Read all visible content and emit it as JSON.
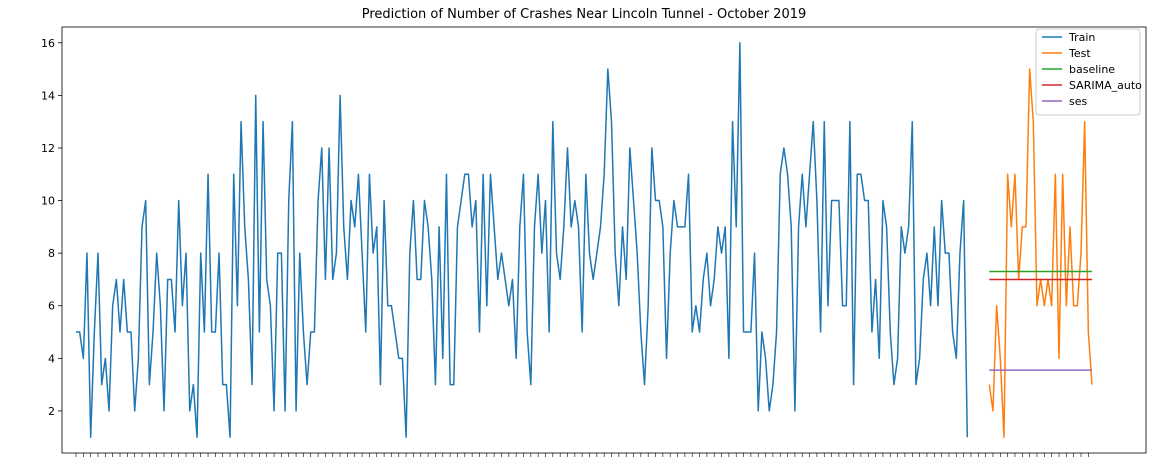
{
  "chart_data": {
    "type": "line",
    "title": "Prediction of Number of Crashes Near Lincoln Tunnel - October 2019",
    "xlabel": "",
    "ylabel": "",
    "ylim": [
      0.4,
      16.6
    ],
    "x_tick_labels_visible": false,
    "grid": false,
    "legend_position": "top-right",
    "y_ticks": [
      2,
      4,
      6,
      8,
      10,
      12,
      14,
      16
    ],
    "series": [
      {
        "name": "Train",
        "color": "#1f77b4",
        "start_index": 0,
        "values": [
          5,
          5,
          4,
          8,
          1,
          5,
          8,
          3,
          4,
          2,
          6,
          7,
          5,
          7,
          5,
          5,
          2,
          4,
          9,
          10,
          3,
          5,
          8,
          6,
          2,
          7,
          7,
          5,
          10,
          6,
          8,
          2,
          3,
          1,
          8,
          5,
          11,
          5,
          5,
          8,
          3,
          3,
          1,
          11,
          6,
          13,
          9,
          7,
          3,
          14,
          5,
          13,
          7,
          6,
          2,
          8,
          8,
          2,
          10,
          13,
          2,
          8,
          5,
          3,
          5,
          5,
          10,
          12,
          7,
          12,
          7,
          8,
          14,
          9,
          7,
          10,
          9,
          11,
          8,
          5,
          11,
          8,
          9,
          3,
          10,
          6,
          6,
          5,
          4,
          4,
          1,
          8,
          10,
          7,
          7,
          10,
          9,
          7,
          3,
          9,
          4,
          11,
          3,
          3,
          9,
          10,
          11,
          11,
          9,
          10,
          5,
          11,
          6,
          11,
          9,
          7,
          8,
          7,
          6,
          7,
          4,
          9,
          11,
          5,
          3,
          9,
          11,
          8,
          10,
          5,
          13,
          8,
          7,
          9,
          12,
          9,
          10,
          9,
          5,
          11,
          8,
          7,
          8,
          9,
          11,
          15,
          13,
          8,
          6,
          9,
          7,
          12,
          10,
          8,
          5,
          3,
          6,
          12,
          10,
          10,
          9,
          4,
          8,
          10,
          9,
          9,
          9,
          11,
          5,
          6,
          5,
          7,
          8,
          6,
          7,
          9,
          8,
          9,
          4,
          13,
          9,
          16,
          5,
          5,
          5,
          8,
          2,
          5,
          4,
          2,
          3,
          5,
          11,
          12,
          11,
          9,
          2,
          9,
          11,
          9,
          11,
          13,
          10,
          5,
          13,
          6,
          10,
          10,
          10,
          6,
          6,
          13,
          3,
          11,
          11,
          10,
          10,
          5,
          7,
          4,
          10,
          9,
          5,
          3,
          4,
          9,
          8,
          9,
          13,
          3,
          4,
          7,
          8,
          6,
          9,
          6,
          10,
          8,
          8,
          5,
          4,
          8,
          10,
          1
        ]
      },
      {
        "name": "Test",
        "color": "#ff7f0e",
        "start_index": 249,
        "values": [
          3,
          2,
          6,
          4,
          1,
          11,
          9,
          11,
          7,
          9,
          9,
          15,
          13,
          6,
          7,
          6,
          7,
          6,
          11,
          4,
          11,
          6,
          9,
          6,
          6,
          8,
          13,
          5,
          3
        ]
      },
      {
        "name": "baseline",
        "color": "#2ca02c",
        "start_index": 249,
        "values": [
          7.3,
          7.3,
          7.3,
          7.3,
          7.3,
          7.3,
          7.3,
          7.3,
          7.3,
          7.3,
          7.3,
          7.3,
          7.3,
          7.3,
          7.3,
          7.3,
          7.3,
          7.3,
          7.3,
          7.3,
          7.3,
          7.3,
          7.3,
          7.3,
          7.3,
          7.3,
          7.3,
          7.3,
          7.3
        ]
      },
      {
        "name": "SARIMA_auto",
        "color": "#d62728",
        "start_index": 249,
        "values": [
          7,
          7,
          7,
          7,
          7,
          7,
          7,
          7,
          7,
          7,
          7,
          7,
          7,
          7,
          7,
          7,
          7,
          7,
          7,
          7,
          7,
          7,
          7,
          7,
          7,
          7,
          7,
          7,
          7
        ]
      },
      {
        "name": "ses",
        "color": "#9467bd",
        "start_index": 249,
        "values": [
          3.55,
          3.55,
          3.55,
          3.55,
          3.55,
          3.55,
          3.55,
          3.55,
          3.55,
          3.55,
          3.55,
          3.55,
          3.55,
          3.55,
          3.55,
          3.55,
          3.55,
          3.55,
          3.55,
          3.55,
          3.55,
          3.55,
          3.55,
          3.55,
          3.55,
          3.55,
          3.55,
          3.55,
          3.55
        ]
      }
    ]
  }
}
